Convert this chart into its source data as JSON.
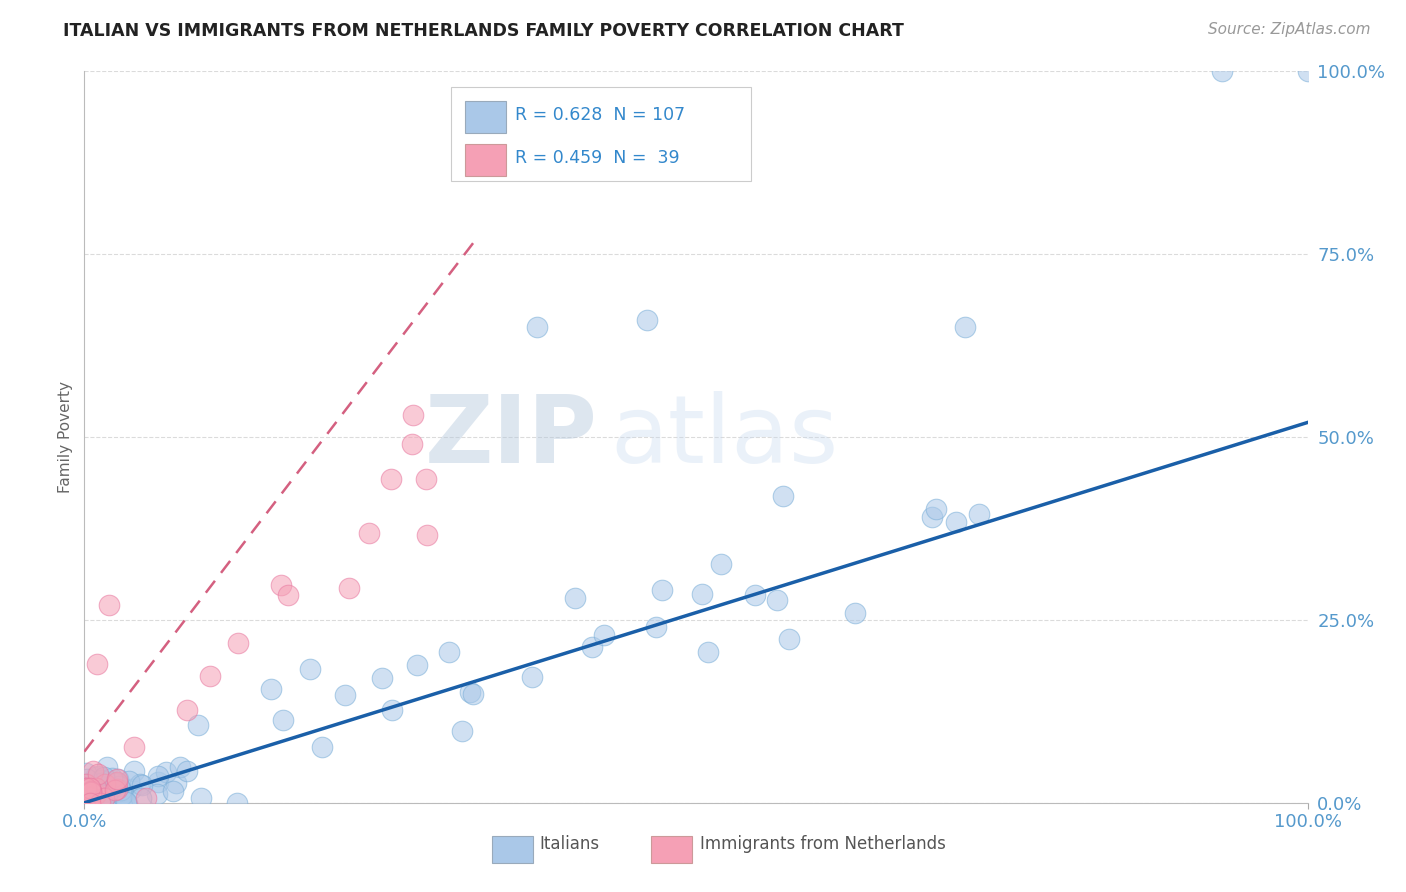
{
  "title": "ITALIAN VS IMMIGRANTS FROM NETHERLANDS FAMILY POVERTY CORRELATION CHART",
  "source_text": "Source: ZipAtlas.com",
  "watermark_zip": "ZIP",
  "watermark_atlas": "atlas",
  "xlabel": "",
  "ylabel": "Family Poverty",
  "xlim": [
    0,
    1
  ],
  "ylim": [
    0,
    1
  ],
  "xtick_labels": [
    "0.0%",
    "100.0%"
  ],
  "ytick_labels": [
    "0.0%",
    "25.0%",
    "50.0%",
    "75.0%",
    "100.0%"
  ],
  "ytick_vals": [
    0,
    0.25,
    0.5,
    0.75,
    1.0
  ],
  "italian_color": "#aac8e8",
  "netherlands_color": "#f5a0b5",
  "italian_edge_color": "#7aaed8",
  "netherlands_edge_color": "#e878a0",
  "italian_line_color": "#1a5fa8",
  "netherlands_line_color": "#d46080",
  "legend_italian_R": 0.628,
  "legend_italian_N": 107,
  "legend_netherlands_R": 0.459,
  "legend_netherlands_N": 39,
  "background_color": "#ffffff",
  "grid_color": "#cccccc",
  "title_fontsize": 13,
  "tick_label_color": "#5599cc",
  "axis_label_color": "#666666",
  "legend_text_color": "#3388cc",
  "watermark_zip_color": "#b8d0e8",
  "watermark_atlas_color": "#c8ddf0",
  "bottom_legend_color": "#555555"
}
